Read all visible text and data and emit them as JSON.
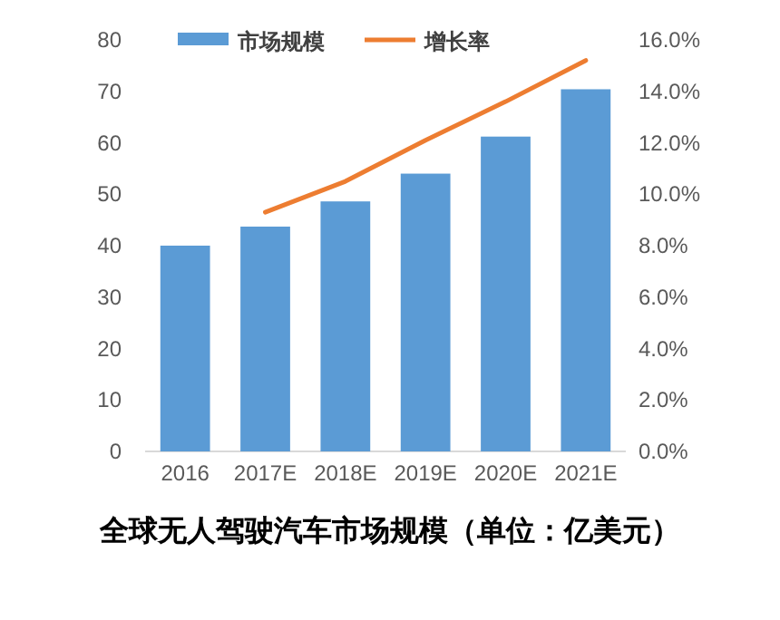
{
  "chart_data": {
    "type": "bar",
    "title": "全球无人驾驶汽车市场规模（单位：亿美元）",
    "categories": [
      "2016",
      "2017E",
      "2018E",
      "2019E",
      "2020E",
      "2021E"
    ],
    "series": [
      {
        "name": "市场规模",
        "color": "#5b9bd5",
        "values": [
          40,
          43.7,
          48.6,
          54,
          61.2,
          70.4
        ]
      },
      {
        "name": "增长率",
        "type": "line",
        "axis": "y2",
        "color": "#ed7d31",
        "values": [
          null,
          9.3,
          10.5,
          12.1,
          13.6,
          15.2
        ]
      }
    ],
    "ylim": [
      0,
      80
    ],
    "yticks": [
      0,
      10,
      20,
      30,
      40,
      50,
      60,
      70,
      80
    ],
    "y2lim": [
      0,
      16
    ],
    "y2ticks": [
      {
        "value": 0,
        "label": "0.0%"
      },
      {
        "value": 2,
        "label": "2.0%"
      },
      {
        "value": 4,
        "label": "4.0%"
      },
      {
        "value": 6,
        "label": "6.0%"
      },
      {
        "value": 8,
        "label": "8.0%"
      },
      {
        "value": 10,
        "label": "10.0%"
      },
      {
        "value": 12,
        "label": "12.0%"
      },
      {
        "value": 14,
        "label": "14.0%"
      },
      {
        "value": 16,
        "label": "16.0%"
      }
    ],
    "legend": "top",
    "grid": false
  }
}
